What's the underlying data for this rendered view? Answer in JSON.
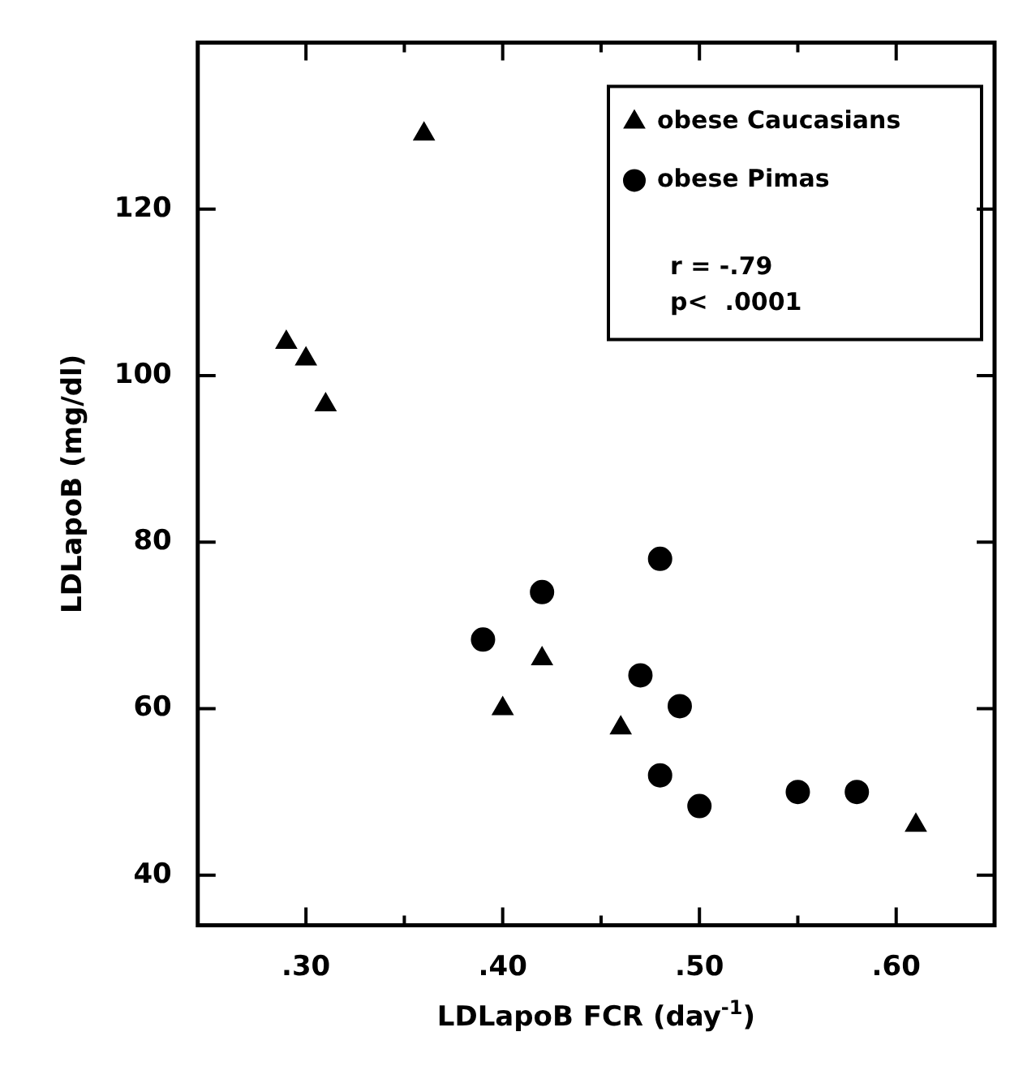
{
  "chart_data": {
    "type": "scatter",
    "xlabel": "LDLapoB FCR (day$^{-1}$)",
    "ylabel": "LDLapoB (mg/dl)",
    "xlim": [
      0.245,
      0.65
    ],
    "ylim": [
      34,
      140
    ],
    "xticks": [
      {
        "value": 0.3,
        "label": ".30"
      },
      {
        "value": 0.35,
        "label": null
      },
      {
        "value": 0.4,
        "label": ".40"
      },
      {
        "value": 0.45,
        "label": null
      },
      {
        "value": 0.5,
        "label": ".50"
      },
      {
        "value": 0.55,
        "label": null
      },
      {
        "value": 0.6,
        "label": ".60"
      }
    ],
    "yticks": [
      40,
      60,
      80,
      100,
      120
    ],
    "grid": false,
    "legend": "top right",
    "annotations": [
      "r = -.79",
      "p<  .0001"
    ],
    "series": [
      {
        "name": "obese Caucasians",
        "color": "#000000",
        "marker": "triangle",
        "x": [
          0.29,
          0.3,
          0.31,
          0.36,
          0.4,
          0.42,
          0.46,
          0.61
        ],
        "values": [
          104,
          102,
          96.5,
          129,
          60,
          66,
          57.7,
          46
        ]
      },
      {
        "name": "obese Pimas",
        "color": "#000000",
        "marker": "circle",
        "x": [
          0.39,
          0.42,
          0.48,
          0.47,
          0.49,
          0.48,
          0.5,
          0.55,
          0.58
        ],
        "values": [
          68.3,
          74,
          78,
          64,
          60.3,
          52,
          48.3,
          50,
          50
        ]
      }
    ]
  }
}
